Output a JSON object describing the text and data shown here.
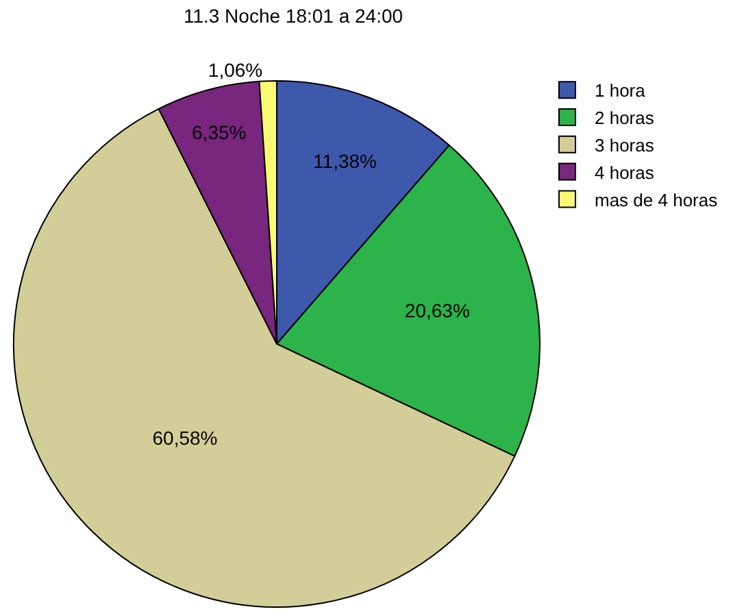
{
  "chart_data": {
    "type": "pie",
    "title": "11.3 Noche 18:01 a 24:00",
    "categories": [
      "1 hora",
      "2 horas",
      "3 horas",
      "4 horas",
      "mas de 4 horas"
    ],
    "values": [
      11.38,
      20.63,
      60.58,
      6.35,
      1.06
    ],
    "colors": [
      "#3e58ac",
      "#2cb34a",
      "#d3ce97",
      "#79267f",
      "#fbf873"
    ],
    "value_labels": [
      "11,38%",
      "20,63%",
      "60,58%",
      "6,35%",
      "1,06%"
    ],
    "legend": "top right"
  }
}
